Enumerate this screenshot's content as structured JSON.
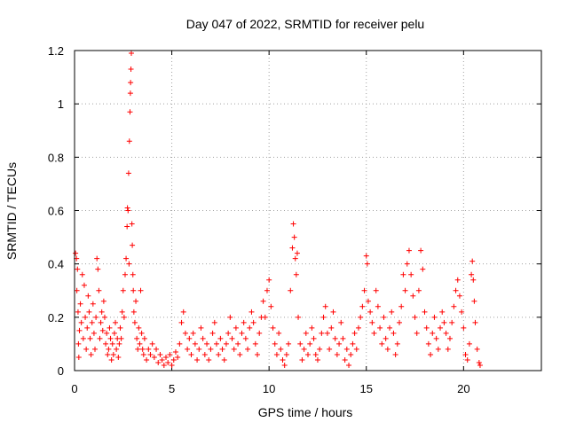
{
  "chart_data": {
    "type": "scatter",
    "title": "Day 047 of 2022, SRMTID for receiver pelu",
    "xlabel": "GPS time / hours",
    "ylabel": "SRMTID / TECUs",
    "xlim": [
      0,
      24
    ],
    "ylim": [
      0,
      1.2
    ],
    "xticks": [
      0,
      5,
      10,
      15,
      20
    ],
    "xtick_labels": [
      "0",
      "5",
      "10",
      "15",
      "20"
    ],
    "yticks": [
      0,
      0.2,
      0.4,
      0.6,
      0.8,
      1,
      1.2
    ],
    "ytick_labels": [
      "0",
      "0.2",
      "0.4",
      "0.6",
      "0.8",
      "1",
      "1.2"
    ],
    "grid": true,
    "marker": "+",
    "color": "#ff0000",
    "series": [
      {
        "name": "SRMTID",
        "points": [
          [
            0.05,
            0.44
          ],
          [
            0.1,
            0.42
          ],
          [
            0.12,
            0.3
          ],
          [
            0.15,
            0.38
          ],
          [
            0.18,
            0.22
          ],
          [
            0.2,
            0.1
          ],
          [
            0.22,
            0.05
          ],
          [
            0.25,
            0.15
          ],
          [
            0.3,
            0.25
          ],
          [
            0.35,
            0.18
          ],
          [
            0.4,
            0.36
          ],
          [
            0.45,
            0.12
          ],
          [
            0.5,
            0.32
          ],
          [
            0.55,
            0.2
          ],
          [
            0.6,
            0.08
          ],
          [
            0.65,
            0.16
          ],
          [
            0.7,
            0.28
          ],
          [
            0.75,
            0.22
          ],
          [
            0.8,
            0.12
          ],
          [
            0.85,
            0.06
          ],
          [
            0.9,
            0.18
          ],
          [
            0.95,
            0.25
          ],
          [
            1.0,
            0.14
          ],
          [
            1.05,
            0.08
          ],
          [
            1.1,
            0.2
          ],
          [
            1.15,
            0.42
          ],
          [
            1.2,
            0.38
          ],
          [
            1.25,
            0.3
          ],
          [
            1.3,
            0.12
          ],
          [
            1.35,
            0.18
          ],
          [
            1.4,
            0.22
          ],
          [
            1.45,
            0.15
          ],
          [
            1.5,
            0.26
          ],
          [
            1.55,
            0.2
          ],
          [
            1.6,
            0.1
          ],
          [
            1.65,
            0.14
          ],
          [
            1.7,
            0.06
          ],
          [
            1.75,
            0.08
          ],
          [
            1.8,
            0.16
          ],
          [
            1.85,
            0.12
          ],
          [
            1.9,
            0.04
          ],
          [
            1.95,
            0.1
          ],
          [
            2.0,
            0.06
          ],
          [
            2.05,
            0.14
          ],
          [
            2.1,
            0.18
          ],
          [
            2.15,
            0.08
          ],
          [
            2.2,
            0.12
          ],
          [
            2.25,
            0.05
          ],
          [
            2.3,
            0.1
          ],
          [
            2.35,
            0.16
          ],
          [
            2.4,
            0.12
          ],
          [
            2.45,
            0.22
          ],
          [
            2.5,
            0.3
          ],
          [
            2.55,
            0.2
          ],
          [
            2.6,
            0.36
          ],
          [
            2.65,
            0.42
          ],
          [
            2.7,
            0.54
          ],
          [
            2.72,
            0.61
          ],
          [
            2.75,
            0.6
          ],
          [
            2.78,
            0.74
          ],
          [
            2.8,
            0.4
          ],
          [
            2.82,
            0.86
          ],
          [
            2.85,
            0.97
          ],
          [
            2.87,
            1.04
          ],
          [
            2.88,
            1.08
          ],
          [
            2.9,
            1.13
          ],
          [
            2.92,
            1.19
          ],
          [
            2.95,
            0.55
          ],
          [
            2.97,
            0.47
          ],
          [
            3.0,
            0.36
          ],
          [
            3.02,
            0.3
          ],
          [
            3.05,
            0.22
          ],
          [
            3.1,
            0.18
          ],
          [
            3.15,
            0.26
          ],
          [
            3.2,
            0.12
          ],
          [
            3.25,
            0.08
          ],
          [
            3.3,
            0.16
          ],
          [
            3.35,
            0.1
          ],
          [
            3.4,
            0.3
          ],
          [
            3.45,
            0.14
          ],
          [
            3.5,
            0.08
          ],
          [
            3.55,
            0.06
          ],
          [
            3.6,
            0.12
          ],
          [
            3.7,
            0.04
          ],
          [
            3.8,
            0.08
          ],
          [
            3.9,
            0.06
          ],
          [
            4.0,
            0.1
          ],
          [
            4.1,
            0.05
          ],
          [
            4.2,
            0.08
          ],
          [
            4.3,
            0.03
          ],
          [
            4.4,
            0.06
          ],
          [
            4.5,
            0.04
          ],
          [
            4.6,
            0.02
          ],
          [
            4.7,
            0.05
          ],
          [
            4.8,
            0.03
          ],
          [
            4.9,
            0.06
          ],
          [
            5.0,
            0.02
          ],
          [
            5.1,
            0.04
          ],
          [
            5.2,
            0.07
          ],
          [
            5.3,
            0.05
          ],
          [
            5.4,
            0.1
          ],
          [
            5.5,
            0.18
          ],
          [
            5.6,
            0.22
          ],
          [
            5.7,
            0.14
          ],
          [
            5.8,
            0.08
          ],
          [
            5.9,
            0.12
          ],
          [
            6.0,
            0.06
          ],
          [
            6.1,
            0.14
          ],
          [
            6.2,
            0.1
          ],
          [
            6.3,
            0.04
          ],
          [
            6.4,
            0.08
          ],
          [
            6.5,
            0.16
          ],
          [
            6.6,
            0.12
          ],
          [
            6.7,
            0.06
          ],
          [
            6.8,
            0.1
          ],
          [
            6.9,
            0.04
          ],
          [
            7.0,
            0.08
          ],
          [
            7.1,
            0.14
          ],
          [
            7.2,
            0.18
          ],
          [
            7.3,
            0.1
          ],
          [
            7.4,
            0.06
          ],
          [
            7.5,
            0.12
          ],
          [
            7.6,
            0.08
          ],
          [
            7.7,
            0.04
          ],
          [
            7.8,
            0.1
          ],
          [
            7.9,
            0.14
          ],
          [
            8.0,
            0.2
          ],
          [
            8.1,
            0.12
          ],
          [
            8.2,
            0.08
          ],
          [
            8.3,
            0.16
          ],
          [
            8.4,
            0.1
          ],
          [
            8.5,
            0.06
          ],
          [
            8.6,
            0.14
          ],
          [
            8.7,
            0.18
          ],
          [
            8.8,
            0.12
          ],
          [
            8.9,
            0.08
          ],
          [
            9.0,
            0.16
          ],
          [
            9.1,
            0.22
          ],
          [
            9.2,
            0.18
          ],
          [
            9.3,
            0.1
          ],
          [
            9.4,
            0.06
          ],
          [
            9.5,
            0.14
          ],
          [
            9.6,
            0.2
          ],
          [
            9.7,
            0.26
          ],
          [
            9.8,
            0.2
          ],
          [
            9.9,
            0.3
          ],
          [
            10.0,
            0.34
          ],
          [
            10.1,
            0.24
          ],
          [
            10.2,
            0.16
          ],
          [
            10.3,
            0.1
          ],
          [
            10.4,
            0.06
          ],
          [
            10.5,
            0.14
          ],
          [
            10.6,
            0.08
          ],
          [
            10.7,
            0.04
          ],
          [
            10.8,
            0.02
          ],
          [
            10.9,
            0.06
          ],
          [
            11.0,
            0.1
          ],
          [
            11.1,
            0.3
          ],
          [
            11.2,
            0.46
          ],
          [
            11.25,
            0.55
          ],
          [
            11.3,
            0.5
          ],
          [
            11.35,
            0.42
          ],
          [
            11.4,
            0.36
          ],
          [
            11.45,
            0.44
          ],
          [
            11.5,
            0.2
          ],
          [
            11.6,
            0.1
          ],
          [
            11.7,
            0.04
          ],
          [
            11.8,
            0.08
          ],
          [
            11.9,
            0.14
          ],
          [
            12.0,
            0.06
          ],
          [
            12.1,
            0.1
          ],
          [
            12.2,
            0.16
          ],
          [
            12.3,
            0.12
          ],
          [
            12.4,
            0.06
          ],
          [
            12.5,
            0.04
          ],
          [
            12.6,
            0.08
          ],
          [
            12.7,
            0.14
          ],
          [
            12.8,
            0.2
          ],
          [
            12.9,
            0.24
          ],
          [
            13.0,
            0.14
          ],
          [
            13.1,
            0.08
          ],
          [
            13.2,
            0.16
          ],
          [
            13.3,
            0.22
          ],
          [
            13.4,
            0.12
          ],
          [
            13.5,
            0.06
          ],
          [
            13.6,
            0.1
          ],
          [
            13.7,
            0.18
          ],
          [
            13.8,
            0.12
          ],
          [
            13.9,
            0.04
          ],
          [
            14.0,
            0.08
          ],
          [
            14.1,
            0.02
          ],
          [
            14.2,
            0.06
          ],
          [
            14.3,
            0.1
          ],
          [
            14.4,
            0.14
          ],
          [
            14.5,
            0.08
          ],
          [
            14.6,
            0.16
          ],
          [
            14.7,
            0.2
          ],
          [
            14.8,
            0.24
          ],
          [
            14.9,
            0.3
          ],
          [
            15.0,
            0.43
          ],
          [
            15.05,
            0.4
          ],
          [
            15.1,
            0.26
          ],
          [
            15.2,
            0.22
          ],
          [
            15.3,
            0.18
          ],
          [
            15.4,
            0.14
          ],
          [
            15.5,
            0.3
          ],
          [
            15.6,
            0.24
          ],
          [
            15.7,
            0.16
          ],
          [
            15.8,
            0.1
          ],
          [
            15.9,
            0.2
          ],
          [
            16.0,
            0.12
          ],
          [
            16.1,
            0.08
          ],
          [
            16.2,
            0.16
          ],
          [
            16.3,
            0.22
          ],
          [
            16.4,
            0.14
          ],
          [
            16.5,
            0.06
          ],
          [
            16.6,
            0.1
          ],
          [
            16.7,
            0.18
          ],
          [
            16.8,
            0.24
          ],
          [
            16.9,
            0.36
          ],
          [
            17.0,
            0.3
          ],
          [
            17.1,
            0.4
          ],
          [
            17.2,
            0.45
          ],
          [
            17.3,
            0.36
          ],
          [
            17.4,
            0.28
          ],
          [
            17.5,
            0.2
          ],
          [
            17.6,
            0.14
          ],
          [
            17.7,
            0.3
          ],
          [
            17.8,
            0.45
          ],
          [
            17.9,
            0.38
          ],
          [
            18.0,
            0.22
          ],
          [
            18.1,
            0.16
          ],
          [
            18.2,
            0.1
          ],
          [
            18.3,
            0.06
          ],
          [
            18.4,
            0.14
          ],
          [
            18.5,
            0.2
          ],
          [
            18.6,
            0.12
          ],
          [
            18.7,
            0.08
          ],
          [
            18.8,
            0.16
          ],
          [
            18.9,
            0.22
          ],
          [
            19.0,
            0.18
          ],
          [
            19.1,
            0.14
          ],
          [
            19.2,
            0.08
          ],
          [
            19.3,
            0.12
          ],
          [
            19.4,
            0.18
          ],
          [
            19.5,
            0.24
          ],
          [
            19.6,
            0.3
          ],
          [
            19.7,
            0.34
          ],
          [
            19.8,
            0.28
          ],
          [
            19.9,
            0.22
          ],
          [
            20.0,
            0.16
          ],
          [
            20.1,
            0.06
          ],
          [
            20.2,
            0.04
          ],
          [
            20.3,
            0.1
          ],
          [
            20.4,
            0.36
          ],
          [
            20.45,
            0.41
          ],
          [
            20.5,
            0.34
          ],
          [
            20.55,
            0.26
          ],
          [
            20.6,
            0.18
          ],
          [
            20.7,
            0.08
          ],
          [
            20.8,
            0.03
          ],
          [
            20.85,
            0.02
          ]
        ]
      }
    ]
  }
}
